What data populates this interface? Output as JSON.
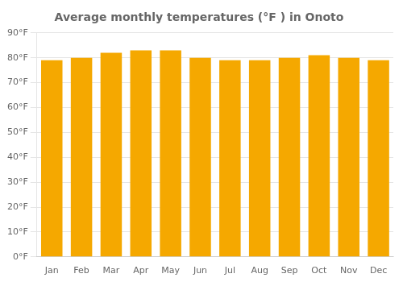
{
  "chart_data": {
    "type": "bar",
    "title": "Average monthly temperatures (°F ) in Onoto",
    "categories": [
      "Jan",
      "Feb",
      "Mar",
      "Apr",
      "May",
      "Jun",
      "Jul",
      "Aug",
      "Sep",
      "Oct",
      "Nov",
      "Dec"
    ],
    "values": [
      79,
      80,
      82,
      83,
      83,
      80,
      79,
      79,
      80,
      81,
      80,
      79
    ],
    "color": "#F5A800",
    "ylim": [
      0,
      90
    ],
    "yticks": [
      {
        "value": 0,
        "label": "0°F"
      },
      {
        "value": 10,
        "label": "10°F"
      },
      {
        "value": 20,
        "label": "20°F"
      },
      {
        "value": 30,
        "label": "30°F"
      },
      {
        "value": 40,
        "label": "40°F"
      },
      {
        "value": 50,
        "label": "50°F"
      },
      {
        "value": 60,
        "label": "60°F"
      },
      {
        "value": 70,
        "label": "70°F"
      },
      {
        "value": 80,
        "label": "80°F"
      },
      {
        "value": 90,
        "label": "90°F"
      }
    ],
    "grid": true
  }
}
